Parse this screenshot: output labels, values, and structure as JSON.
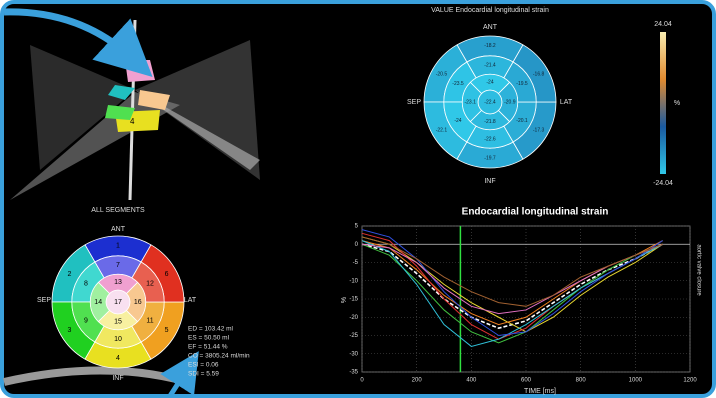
{
  "view3d": {
    "segment_label": "4"
  },
  "value_bullseye": {
    "title": "VALUE Endocardial longitudinal strain",
    "labels": {
      "top": "ANT",
      "right": "LAT",
      "bottom": "INF",
      "left": "SEP"
    },
    "values": [
      -18.2,
      -20.5,
      -22.1,
      -19.7,
      -17.3,
      -16.8,
      -21.4,
      -23.5,
      -24.0,
      -22.6,
      -20.1,
      -19.5,
      -24.0,
      -23.1,
      -21.8,
      -20.9,
      -22.4
    ],
    "colorbar": {
      "max": 24.04,
      "min": -24.04,
      "unit": "%",
      "colors": [
        "#f8ecb0",
        "#e08a30",
        "#1a5aa0",
        "#30c8e8"
      ]
    }
  },
  "all_segments": {
    "title": "ALL SEGMENTS",
    "labels": {
      "top": "ANT",
      "right": "LAT",
      "bottom": "INF",
      "left": "SEP"
    },
    "segments": [
      1,
      2,
      3,
      4,
      5,
      6,
      7,
      8,
      9,
      10,
      11,
      12,
      13,
      14,
      15,
      16,
      17
    ],
    "colors": [
      "#1c2fd0",
      "#20c0c0",
      "#20d020",
      "#e8e020",
      "#f0a020",
      "#e03020",
      "#6a6ae8",
      "#40d8d0",
      "#50e050",
      "#f0e860",
      "#f0b040",
      "#e86050",
      "#f0a0d0",
      "#a0f0a0",
      "#f8f0a0",
      "#f8c890",
      "#f8e0f0"
    ]
  },
  "stats": [
    "ED = 103.42 ml",
    "ES = 50.50 ml",
    "EF = 51.44 %",
    "CO = 3805.24 ml/min",
    "ESI = 0.06",
    "SDI = 5.59"
  ],
  "chart_data": {
    "type": "line",
    "title": "Endocardial longitudinal strain",
    "x_label": "TIME [ms]",
    "y_label": "%",
    "right_label": "aortic valve closure",
    "x": [
      0,
      100,
      200,
      300,
      400,
      500,
      600,
      700,
      800,
      900,
      1000,
      1100
    ],
    "series": [
      {
        "color": "#ffffff",
        "dash": true,
        "values": [
          0,
          -2,
          -8,
          -15,
          -20,
          -23,
          -21,
          -16,
          -11,
          -7,
          -4,
          0
        ]
      },
      {
        "color": "#e8d830",
        "values": [
          2,
          0,
          -5,
          -11,
          -16,
          -20,
          -24,
          -20,
          -14,
          -9,
          -5,
          0
        ]
      },
      {
        "color": "#f08020",
        "values": [
          1,
          -1,
          -7,
          -14,
          -19,
          -22,
          -20,
          -15,
          -10,
          -6,
          -3,
          1
        ]
      },
      {
        "color": "#e03030",
        "values": [
          3,
          1,
          -6,
          -15,
          -22,
          -26,
          -23,
          -17,
          -12,
          -8,
          -4,
          0
        ]
      },
      {
        "color": "#40c040",
        "values": [
          0,
          -3,
          -10,
          -18,
          -24,
          -27,
          -24,
          -18,
          -12,
          -7,
          -3,
          0
        ]
      },
      {
        "color": "#30c0d8",
        "values": [
          1,
          -2,
          -11,
          -22,
          -28,
          -26,
          -22,
          -17,
          -12,
          -8,
          -4,
          0
        ]
      },
      {
        "color": "#3050e0",
        "values": [
          4,
          2,
          -4,
          -13,
          -20,
          -25,
          -24,
          -19,
          -13,
          -8,
          -4,
          1
        ]
      },
      {
        "color": "#e070c0",
        "values": [
          0,
          -1,
          -5,
          -12,
          -17,
          -19,
          -18,
          -14,
          -10,
          -6,
          -3,
          0
        ]
      },
      {
        "color": "#a06030",
        "values": [
          2,
          0,
          -4,
          -9,
          -13,
          -16,
          -17,
          -14,
          -9,
          -6,
          -3,
          0
        ]
      }
    ],
    "xlim": [
      0,
      1200
    ],
    "xticks": [
      0,
      200,
      400,
      600,
      800,
      1000,
      1200
    ],
    "ylim": [
      -35,
      5
    ],
    "yticks": [
      5,
      0,
      -5,
      -10,
      -15,
      -20,
      -25,
      -30,
      -35
    ],
    "grid": true,
    "marker": {
      "x": 360,
      "color": "#30e040"
    }
  }
}
